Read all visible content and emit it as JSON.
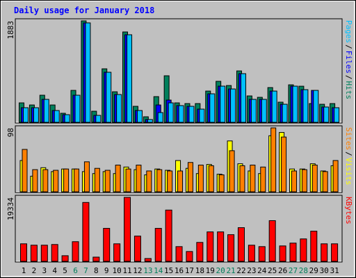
{
  "chart_data": [
    {
      "type": "bar",
      "title": "Daily usage for January 2018",
      "ylim": [
        0,
        1883
      ],
      "yticks": [
        1883
      ],
      "legend_separator": "/",
      "series": [
        {
          "name": "Hits",
          "color": "#00805c",
          "values": [
            361,
            322,
            503,
            322,
            168,
            593,
            1883,
            206,
            993,
            567,
            1677,
            297,
            103,
            477,
            864,
            361,
            348,
            348,
            580,
            761,
            683,
            954,
            490,
            464,
            645,
            374,
            696,
            670,
            348,
            335,
            348
          ]
        },
        {
          "name": "Files",
          "color": "#0000ff",
          "values": [
            271,
            271,
            426,
            219,
            142,
            503,
            1845,
            129,
            929,
            516,
            1625,
            219,
            52,
            322,
            413,
            310,
            297,
            245,
            529,
            671,
            619,
            903,
            426,
            426,
            580,
            335,
            671,
            606,
            593,
            284,
            271
          ]
        },
        {
          "name": "Pages",
          "color": "#00c0ff",
          "values": [
            271,
            271,
            426,
            219,
            142,
            503,
            1845,
            129,
            929,
            516,
            1625,
            219,
            52,
            181,
            361,
            310,
            297,
            245,
            529,
            671,
            619,
            903,
            426,
            426,
            580,
            335,
            671,
            606,
            593,
            284,
            271
          ]
        }
      ]
    },
    {
      "type": "bar",
      "ylim": [
        0,
        98
      ],
      "yticks": [
        98
      ],
      "legend_separator": "/",
      "series": [
        {
          "name": "Visits",
          "color": "#ffff00",
          "values": [
            48,
            24,
            37,
            31,
            35,
            35,
            31,
            28,
            31,
            28,
            38,
            34,
            26,
            35,
            33,
            48,
            36,
            28,
            42,
            27,
            78,
            43,
            32,
            28,
            86,
            91,
            35,
            35,
            43,
            32,
            40
          ]
        },
        {
          "name": "Sites",
          "color": "#ff8000",
          "values": [
            65,
            34,
            34,
            33,
            35,
            35,
            46,
            36,
            33,
            41,
            35,
            41,
            32,
            34,
            32,
            32,
            45,
            41,
            40,
            26,
            63,
            40,
            41,
            38,
            98,
            84,
            32,
            34,
            41,
            31,
            48
          ]
        }
      ]
    },
    {
      "type": "bar",
      "ylim": [
        0,
        19334
      ],
      "yticks": [
        19334
      ],
      "categories": [
        "1",
        "2",
        "3",
        "4",
        "5",
        "6",
        "7",
        "8",
        "9",
        "10",
        "11",
        "12",
        "13",
        "14",
        "15",
        "16",
        "17",
        "18",
        "19",
        "20",
        "21",
        "22",
        "23",
        "24",
        "25",
        "26",
        "27",
        "28",
        "29",
        "30",
        "31"
      ],
      "weekend_categories": [
        "6",
        "7",
        "13",
        "14",
        "20",
        "21",
        "27",
        "28"
      ],
      "weekend_color": "#00805c",
      "series": [
        {
          "name": "KBytes",
          "color": "#ff0000",
          "values": [
            5300,
            4880,
            4880,
            5090,
            1700,
            5940,
            17800,
            1270,
            9970,
            5300,
            19334,
            7630,
            850,
            9970,
            15500,
            4450,
            2970,
            5720,
            8900,
            8900,
            8060,
            10180,
            4880,
            4450,
            12300,
            4660,
            5510,
            6780,
            9120,
            5300,
            5300
          ]
        }
      ]
    }
  ]
}
